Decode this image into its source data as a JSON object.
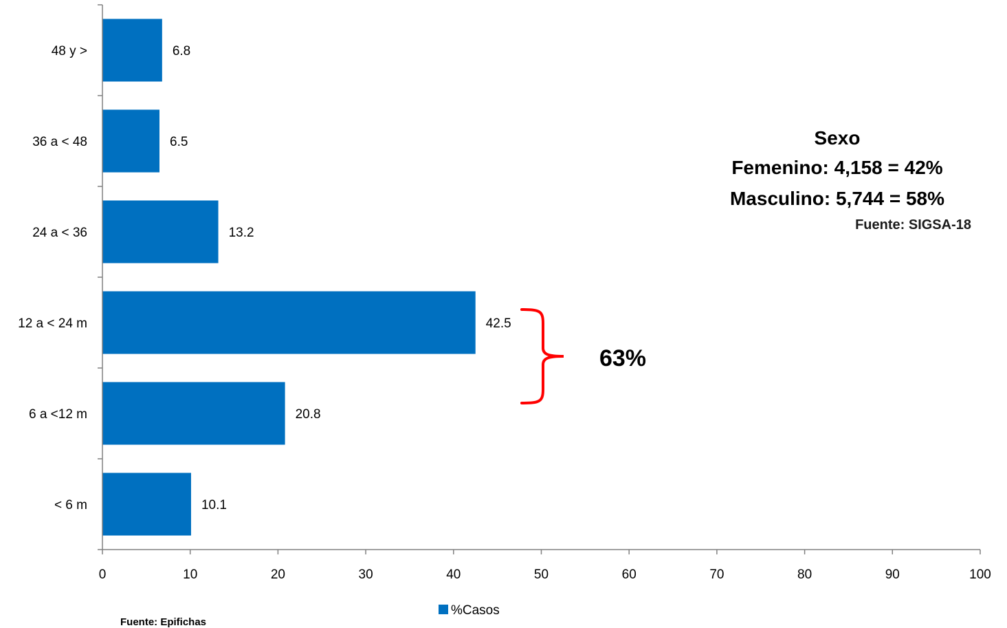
{
  "chart_data": {
    "type": "bar",
    "orientation": "horizontal",
    "categories": [
      "< 6 m",
      "6 a <12 m",
      "12 a < 24 m",
      "24 a < 36",
      "36 a < 48",
      "48 y >"
    ],
    "series": [
      {
        "name": "%Casos",
        "values": [
          10.1,
          20.8,
          42.5,
          13.2,
          6.5,
          6.8
        ],
        "color": "#0070c0"
      }
    ],
    "xlim": [
      0,
      100
    ],
    "xticks": [
      0,
      10,
      20,
      30,
      40,
      50,
      60,
      70,
      80,
      90,
      100
    ],
    "grid": false,
    "legend_position": "bottom-center",
    "annotations": {
      "sexo_title": "Sexo",
      "femenino": "Femenino:  4,158 = 42%",
      "masculino": "Masculino: 5,744 = 58%",
      "fuente_right": "Fuente: SIGSA-18",
      "brace_percent": "63%",
      "brace_color": "#ff0000"
    },
    "source": "Fuente: Epifichas"
  }
}
